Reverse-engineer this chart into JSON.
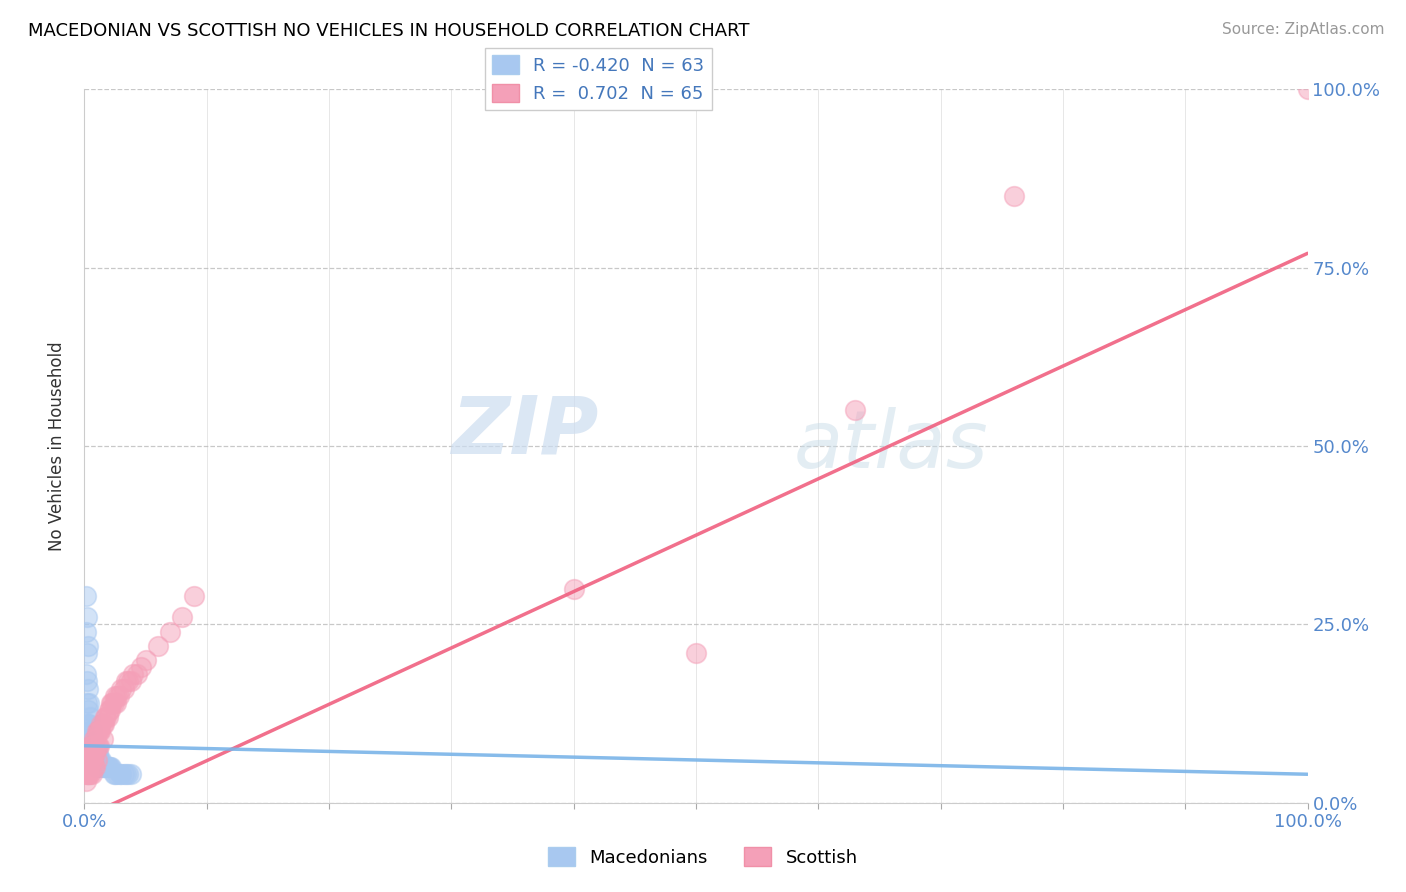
{
  "title": "MACEDONIAN VS SCOTTISH NO VEHICLES IN HOUSEHOLD CORRELATION CHART",
  "source": "Source: ZipAtlas.com",
  "ylabel": "No Vehicles in Household",
  "yticks_labels": [
    "0.0%",
    "25.0%",
    "50.0%",
    "75.0%",
    "100.0%"
  ],
  "ytick_vals": [
    0.0,
    0.25,
    0.5,
    0.75,
    1.0
  ],
  "xticks_labels": [
    "0.0%",
    "100.0%"
  ],
  "xtick_vals": [
    0.0,
    1.0
  ],
  "legend_R_mac": "R = -0.420",
  "legend_N_mac": "N = 63",
  "legend_R_sco": "R =  0.702",
  "legend_N_sco": "N = 65",
  "macedonian_color": "#a8c8f0",
  "scottish_color": "#f4a0b8",
  "scottish_line_color": "#f06080",
  "macedonian_line_color": "#7ab4e8",
  "watermark_zip": "ZIP",
  "watermark_atlas": "atlas",
  "bottom_legend_mac": "Macedonians",
  "bottom_legend_sco": "Scottish",
  "mac_scatter_x": [
    0.001,
    0.001,
    0.001,
    0.002,
    0.002,
    0.002,
    0.002,
    0.003,
    0.003,
    0.003,
    0.003,
    0.003,
    0.004,
    0.004,
    0.004,
    0.004,
    0.005,
    0.005,
    0.005,
    0.005,
    0.006,
    0.006,
    0.006,
    0.006,
    0.007,
    0.007,
    0.007,
    0.008,
    0.008,
    0.008,
    0.009,
    0.009,
    0.009,
    0.01,
    0.01,
    0.01,
    0.011,
    0.011,
    0.012,
    0.012,
    0.013,
    0.013,
    0.014,
    0.014,
    0.015,
    0.016,
    0.017,
    0.018,
    0.019,
    0.02,
    0.021,
    0.022,
    0.024,
    0.025,
    0.027,
    0.029,
    0.03,
    0.032,
    0.034,
    0.036,
    0.038,
    0.002,
    0.003
  ],
  "mac_scatter_y": [
    0.29,
    0.24,
    0.18,
    0.21,
    0.17,
    0.14,
    0.11,
    0.16,
    0.13,
    0.11,
    0.09,
    0.08,
    0.14,
    0.11,
    0.09,
    0.07,
    0.12,
    0.1,
    0.08,
    0.07,
    0.1,
    0.08,
    0.07,
    0.06,
    0.09,
    0.07,
    0.06,
    0.08,
    0.07,
    0.06,
    0.08,
    0.07,
    0.06,
    0.07,
    0.06,
    0.05,
    0.07,
    0.06,
    0.06,
    0.05,
    0.06,
    0.05,
    0.06,
    0.05,
    0.05,
    0.05,
    0.05,
    0.05,
    0.05,
    0.05,
    0.05,
    0.05,
    0.04,
    0.04,
    0.04,
    0.04,
    0.04,
    0.04,
    0.04,
    0.04,
    0.04,
    0.26,
    0.22
  ],
  "sco_scatter_x": [
    0.001,
    0.001,
    0.002,
    0.002,
    0.003,
    0.003,
    0.004,
    0.004,
    0.004,
    0.005,
    0.005,
    0.005,
    0.006,
    0.006,
    0.006,
    0.007,
    0.007,
    0.008,
    0.008,
    0.008,
    0.009,
    0.009,
    0.009,
    0.01,
    0.01,
    0.01,
    0.011,
    0.011,
    0.012,
    0.012,
    0.013,
    0.014,
    0.015,
    0.015,
    0.016,
    0.017,
    0.018,
    0.019,
    0.02,
    0.021,
    0.022,
    0.023,
    0.024,
    0.025,
    0.026,
    0.027,
    0.028,
    0.03,
    0.032,
    0.034,
    0.036,
    0.038,
    0.04,
    0.043,
    0.046,
    0.05,
    0.06,
    0.07,
    0.08,
    0.09,
    0.4,
    0.5,
    0.63,
    0.76,
    1.0
  ],
  "sco_scatter_y": [
    0.04,
    0.03,
    0.05,
    0.04,
    0.06,
    0.04,
    0.07,
    0.06,
    0.04,
    0.08,
    0.06,
    0.04,
    0.08,
    0.06,
    0.04,
    0.08,
    0.06,
    0.09,
    0.07,
    0.05,
    0.09,
    0.07,
    0.05,
    0.1,
    0.08,
    0.06,
    0.1,
    0.08,
    0.1,
    0.08,
    0.1,
    0.11,
    0.11,
    0.09,
    0.11,
    0.12,
    0.12,
    0.12,
    0.13,
    0.13,
    0.14,
    0.14,
    0.14,
    0.15,
    0.14,
    0.15,
    0.15,
    0.16,
    0.16,
    0.17,
    0.17,
    0.17,
    0.18,
    0.18,
    0.19,
    0.2,
    0.22,
    0.24,
    0.26,
    0.29,
    0.3,
    0.21,
    0.55,
    0.85,
    1.0
  ],
  "sco_line_x0": 0.0,
  "sco_line_x1": 1.0,
  "sco_line_y0": -0.02,
  "sco_line_y1": 0.77,
  "mac_line_x0": 0.0,
  "mac_line_x1": 1.0,
  "mac_line_y0": 0.08,
  "mac_line_y1": 0.04
}
